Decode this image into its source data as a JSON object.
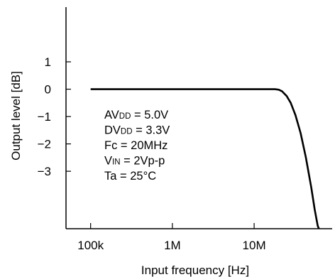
{
  "chart_data": {
    "type": "line",
    "title": "",
    "xlabel": "Input frequency [Hz]",
    "ylabel": "Output level [dB]",
    "x_scale": "log",
    "x_ticks": [
      {
        "value": 100000,
        "label": "100k"
      },
      {
        "value": 1000000,
        "label": "1M"
      },
      {
        "value": 10000000,
        "label": "10M"
      }
    ],
    "y_ticks": [
      {
        "value": 1,
        "label": "1"
      },
      {
        "value": 0,
        "label": "0"
      },
      {
        "value": -1,
        "label": "−1"
      },
      {
        "value": -2,
        "label": "−2"
      },
      {
        "value": -3,
        "label": "−3"
      }
    ],
    "xlim": [
      50000,
      90000000
    ],
    "ylim": [
      -5.1,
      3.0
    ],
    "grid": false,
    "series": [
      {
        "x": [
          100000,
          1000000,
          10000000,
          15000000,
          18000000,
          20000000,
          22000000,
          25000000,
          28000000,
          32000000,
          37000000,
          43000000,
          50000000,
          55000000,
          60000000,
          62000000
        ],
        "y": [
          0,
          0,
          0,
          0,
          0,
          -0.02,
          -0.08,
          -0.25,
          -0.5,
          -0.95,
          -1.6,
          -2.5,
          -3.6,
          -4.4,
          -5.0,
          -5.1
        ]
      }
    ],
    "annotation_lines": [
      {
        "main": "AV",
        "sub": "DD",
        "rest": " = 5.0V"
      },
      {
        "main": "DV",
        "sub": "DD",
        "rest": " = 3.3V"
      },
      {
        "main": "Fc",
        "sub": "",
        "rest": " = 20MHz"
      },
      {
        "main": "V",
        "sub": "IN",
        "rest": " = 2Vp-p"
      },
      {
        "main": "Ta",
        "sub": "",
        "rest": " = 25°C"
      }
    ]
  }
}
